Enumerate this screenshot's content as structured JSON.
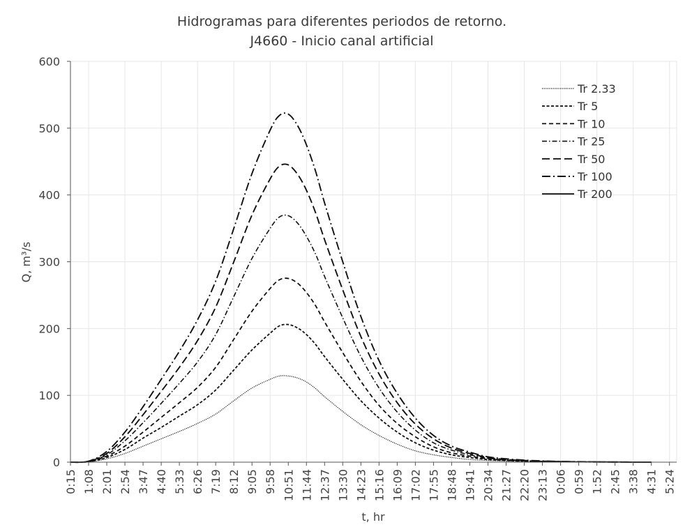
{
  "chart_data": {
    "type": "line",
    "title": "Hidrogramas para diferentes periodos de retorno.",
    "subtitle": "J4660 - Inicio canal artificial",
    "xlabel": "t, hr",
    "ylabel": "Q, m³/s",
    "ylim": [
      0,
      600
    ],
    "yticks": [
      0,
      100,
      200,
      300,
      400,
      500,
      600
    ],
    "xticks": [
      "0:15",
      "1:08",
      "2:01",
      "2:54",
      "3:47",
      "4:40",
      "5:33",
      "6:26",
      "7:19",
      "8:12",
      "9:05",
      "9:58",
      "10:51",
      "11:44",
      "12:37",
      "13:30",
      "14:23",
      "15:16",
      "16:09",
      "17:02",
      "17:55",
      "18:48",
      "19:41",
      "20:34",
      "21:27",
      "22:20",
      "23:13",
      "0:06",
      "0:59",
      "1:52",
      "2:45",
      "3:38",
      "4:31",
      "5:24"
    ],
    "xlim_minutes": [
      15,
      1785
    ],
    "grid": true,
    "legend_position": "top-right",
    "series": [
      {
        "name": "Tr 2.33",
        "style": "dotted",
        "x": [
          15,
          68,
          121,
          174,
          227,
          280,
          333,
          386,
          439,
          492,
          545,
          598,
          625,
          651,
          678,
          704,
          731,
          757,
          810,
          863,
          916,
          969,
          1022,
          1075,
          1128,
          1181,
          1234,
          1287,
          1340,
          1393,
          1446,
          1499,
          1552,
          1605,
          1658,
          1711
        ],
        "y": [
          0,
          0.5,
          5,
          13,
          24,
          35,
          46,
          58,
          72,
          92,
          111,
          124,
          129,
          129,
          126,
          120,
          110,
          98,
          76,
          56,
          40,
          27,
          17,
          11,
          7,
          4,
          2.5,
          1.5,
          1,
          0.6,
          0.4,
          0.3,
          0.2,
          0.1,
          0.1,
          0
        ]
      },
      {
        "name": "Tr 5",
        "style": "short-dash",
        "x": [
          15,
          68,
          121,
          174,
          227,
          280,
          333,
          386,
          439,
          492,
          545,
          598,
          625,
          651,
          678,
          704,
          731,
          757,
          810,
          863,
          916,
          969,
          1022,
          1075,
          1128,
          1181,
          1234,
          1287,
          1340,
          1393,
          1446,
          1499,
          1552,
          1605,
          1658,
          1711
        ],
        "y": [
          0,
          0.6,
          7,
          19,
          36,
          52,
          69,
          86,
          108,
          138,
          168,
          193,
          204,
          206,
          201,
          191,
          176,
          158,
          124,
          92,
          66,
          45,
          29,
          18,
          11,
          7,
          4,
          2.5,
          1.5,
          1,
          0.6,
          0.4,
          0.3,
          0.2,
          0.1,
          0
        ]
      },
      {
        "name": "Tr 10",
        "style": "dash",
        "x": [
          15,
          68,
          121,
          174,
          227,
          280,
          333,
          386,
          439,
          492,
          545,
          598,
          625,
          651,
          678,
          704,
          731,
          757,
          810,
          863,
          916,
          969,
          1022,
          1075,
          1128,
          1181,
          1234,
          1287,
          1340,
          1393,
          1446,
          1499,
          1552,
          1605,
          1658,
          1711
        ],
        "y": [
          0,
          0.8,
          9,
          24,
          45,
          67,
          89,
          112,
          142,
          184,
          226,
          260,
          273,
          275,
          268,
          254,
          234,
          210,
          164,
          121,
          85,
          58,
          38,
          23,
          14,
          9,
          5,
          3,
          2,
          1.2,
          0.8,
          0.5,
          0.3,
          0.2,
          0.1,
          0
        ]
      },
      {
        "name": "Tr 25",
        "style": "dash-dot",
        "x": [
          15,
          68,
          121,
          174,
          227,
          280,
          333,
          386,
          439,
          492,
          545,
          598,
          625,
          651,
          678,
          704,
          731,
          757,
          810,
          863,
          916,
          969,
          1022,
          1075,
          1128,
          1181,
          1234,
          1287,
          1340,
          1393,
          1446,
          1499,
          1552,
          1605,
          1658,
          1711
        ],
        "y": [
          0,
          1,
          11,
          32,
          59,
          88,
          118,
          150,
          191,
          248,
          305,
          350,
          367,
          369,
          358,
          338,
          311,
          278,
          216,
          158,
          111,
          75,
          48,
          29,
          18,
          11,
          6,
          3.5,
          2,
          1.3,
          0.8,
          0.5,
          0.3,
          0.2,
          0.1,
          0
        ]
      },
      {
        "name": "Tr 50",
        "style": "long-dash",
        "x": [
          15,
          68,
          121,
          174,
          227,
          280,
          333,
          386,
          439,
          492,
          545,
          598,
          625,
          651,
          678,
          704,
          731,
          757,
          810,
          863,
          916,
          969,
          1022,
          1075,
          1128,
          1181,
          1234,
          1287,
          1340,
          1393,
          1446,
          1499,
          1552,
          1605,
          1658,
          1711
        ],
        "y": [
          0,
          1.2,
          13,
          38,
          71,
          106,
          142,
          182,
          232,
          300,
          370,
          424,
          443,
          445,
          431,
          407,
          373,
          333,
          258,
          188,
          132,
          89,
          57,
          35,
          21,
          13,
          7,
          4,
          2.5,
          1.5,
          0.9,
          0.6,
          0.4,
          0.2,
          0.1,
          0
        ]
      },
      {
        "name": "Tr 100",
        "style": "long-dash-dot",
        "x": [
          15,
          68,
          121,
          174,
          227,
          280,
          333,
          386,
          439,
          492,
          545,
          598,
          625,
          651,
          678,
          704,
          731,
          757,
          810,
          863,
          916,
          969,
          1022,
          1075,
          1128,
          1181,
          1234,
          1287,
          1340,
          1393,
          1446,
          1499,
          1552,
          1605,
          1658,
          1711
        ],
        "y": [
          0,
          1.5,
          16,
          45,
          83,
          124,
          166,
          213,
          271,
          350,
          432,
          497,
          519,
          521,
          504,
          475,
          435,
          388,
          300,
          218,
          152,
          103,
          66,
          40,
          24,
          15,
          8,
          5,
          3,
          1.8,
          1.1,
          0.7,
          0.4,
          0.2,
          0.1,
          0
        ]
      },
      {
        "name": "Tr 200",
        "style": "solid",
        "x": [],
        "y": []
      }
    ]
  }
}
